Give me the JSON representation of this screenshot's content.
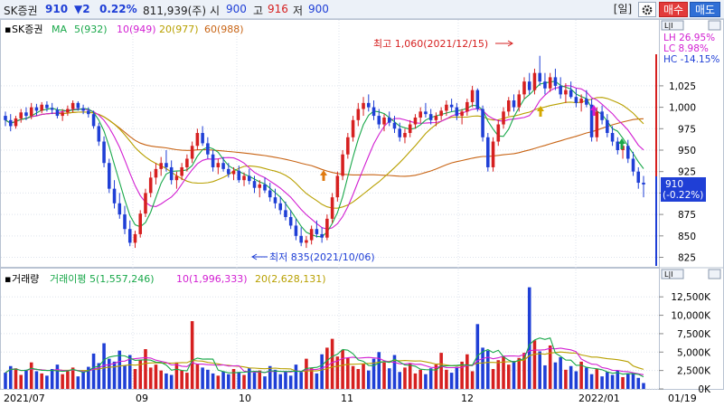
{
  "header": {
    "stock_name": "SK증권",
    "price": "910",
    "change": "▼2",
    "change_pct": "0.22%",
    "volume": "811,939(주)",
    "open_label": "시",
    "open": "900",
    "high_label": "고",
    "high": "916",
    "low_label": "저",
    "low": "900",
    "period_button": "[일]",
    "gear_icon": "gear-icon",
    "buy_button": "매수",
    "sell_button": "매도",
    "colors": {
      "up": "#d62020",
      "down": "#1f3fd6",
      "buy": "#e23b3b",
      "sell": "#2f6fd6"
    }
  },
  "price_panel": {
    "title": "SK증권",
    "ma_label": "MA",
    "ma_legend": [
      {
        "text": "5(932)",
        "color": "#19a84a"
      },
      {
        "text": "10(949)",
        "color": "#d21fd2"
      },
      {
        "text": "20(977)",
        "color": "#b8a000"
      },
      {
        "text": "60(988)",
        "color": "#c86414"
      }
    ],
    "stats": {
      "lh": "LH  26.95%",
      "lc": "LC  8.98%",
      "hc": "HC -14.15%"
    },
    "high_annotation": "최고 1,060(2021/12/15)",
    "low_annotation": "최저 835(2021/10/06)",
    "current_price_box": {
      "price": "910",
      "change": "(-0.22%)"
    },
    "panel_button": "L|I"
  },
  "volume_panel": {
    "title": "거래량",
    "legend": [
      {
        "text": "거래이평 5(1,557,246)",
        "color": "#19a84a"
      },
      {
        "text": "10(1,996,333)",
        "color": "#d21fd2"
      },
      {
        "text": "20(2,628,131)",
        "color": "#b8a000"
      }
    ],
    "panel_button": "L|I"
  },
  "x_axis": {
    "labels": [
      "2021/07",
      "09",
      "10",
      "11",
      "12",
      "2022/01",
      "01/19"
    ]
  },
  "chart_data": [
    {
      "type": "candlestick",
      "title": "SK증권",
      "ylim": [
        815,
        1085
      ],
      "yticks": [
        825,
        850,
        875,
        900,
        925,
        950,
        975,
        1000,
        1025
      ],
      "ytick_labels": [
        "825",
        "850",
        "875",
        "900",
        "925",
        "950",
        "975",
        "1,000",
        "1,025"
      ],
      "high_point": {
        "value": 1060,
        "date": "2021/12/15"
      },
      "low_point": {
        "value": 835,
        "date": "2021/10/06"
      },
      "last_close": 910,
      "candles_ohlc": [
        [
          990,
          995,
          978,
          985
        ],
        [
          985,
          992,
          972,
          978
        ],
        [
          978,
          990,
          975,
          987
        ],
        [
          987,
          998,
          982,
          994
        ],
        [
          994,
          1000,
          985,
          990
        ],
        [
          990,
          1005,
          986,
          1000
        ],
        [
          1000,
          1004,
          990,
          996
        ],
        [
          996,
          1006,
          993,
          1003
        ],
        [
          1003,
          1007,
          995,
          999
        ],
        [
          999,
          1005,
          992,
          997
        ],
        [
          997,
          1000,
          987,
          990
        ],
        [
          990,
          998,
          984,
          994
        ],
        [
          994,
          1002,
          990,
          998
        ],
        [
          998,
          1008,
          994,
          1005
        ],
        [
          1005,
          1007,
          996,
          999
        ],
        [
          999,
          1003,
          992,
          996
        ],
        [
          996,
          1000,
          988,
          992
        ],
        [
          992,
          996,
          975,
          978
        ],
        [
          978,
          982,
          955,
          960
        ],
        [
          960,
          966,
          930,
          935
        ],
        [
          935,
          940,
          900,
          905
        ],
        [
          905,
          915,
          882,
          888
        ],
        [
          888,
          900,
          870,
          875
        ],
        [
          875,
          885,
          852,
          858
        ],
        [
          858,
          868,
          838,
          842
        ],
        [
          842,
          856,
          836,
          852
        ],
        [
          852,
          880,
          848,
          876
        ],
        [
          876,
          905,
          872,
          900
        ],
        [
          900,
          925,
          895,
          918
        ],
        [
          918,
          935,
          910,
          928
        ],
        [
          928,
          942,
          920,
          935
        ],
        [
          935,
          950,
          925,
          930
        ],
        [
          930,
          938,
          910,
          915
        ],
        [
          915,
          925,
          905,
          920
        ],
        [
          920,
          935,
          915,
          930
        ],
        [
          930,
          945,
          925,
          940
        ],
        [
          940,
          960,
          935,
          955
        ],
        [
          955,
          975,
          950,
          970
        ],
        [
          970,
          978,
          955,
          958
        ],
        [
          958,
          965,
          940,
          945
        ],
        [
          945,
          950,
          925,
          930
        ],
        [
          930,
          940,
          922,
          935
        ],
        [
          935,
          942,
          925,
          928
        ],
        [
          928,
          935,
          918,
          922
        ],
        [
          922,
          930,
          915,
          926
        ],
        [
          926,
          932,
          912,
          915
        ],
        [
          915,
          924,
          908,
          920
        ],
        [
          920,
          928,
          910,
          914
        ],
        [
          914,
          920,
          900,
          906
        ],
        [
          906,
          915,
          895,
          910
        ],
        [
          910,
          918,
          900,
          903
        ],
        [
          903,
          912,
          890,
          895
        ],
        [
          895,
          905,
          882,
          888
        ],
        [
          888,
          896,
          875,
          880
        ],
        [
          880,
          890,
          868,
          872
        ],
        [
          872,
          880,
          858,
          862
        ],
        [
          862,
          870,
          845,
          850
        ],
        [
          850,
          860,
          838,
          842
        ],
        [
          842,
          850,
          836,
          845
        ],
        [
          845,
          862,
          840,
          858
        ],
        [
          858,
          868,
          848,
          852
        ],
        [
          852,
          860,
          842,
          848
        ],
        [
          848,
          875,
          845,
          870
        ],
        [
          870,
          900,
          865,
          895
        ],
        [
          895,
          925,
          890,
          920
        ],
        [
          920,
          950,
          915,
          945
        ],
        [
          945,
          970,
          940,
          965
        ],
        [
          965,
          990,
          960,
          985
        ],
        [
          985,
          1005,
          978,
          998
        ],
        [
          998,
          1012,
          990,
          1005
        ],
        [
          1005,
          1015,
          995,
          1000
        ],
        [
          1000,
          1008,
          985,
          990
        ],
        [
          990,
          998,
          975,
          980
        ],
        [
          980,
          992,
          972,
          988
        ],
        [
          988,
          995,
          978,
          982
        ],
        [
          982,
          990,
          970,
          975
        ],
        [
          975,
          982,
          960,
          965
        ],
        [
          965,
          975,
          958,
          970
        ],
        [
          970,
          985,
          965,
          980
        ],
        [
          980,
          992,
          975,
          988
        ],
        [
          988,
          1000,
          982,
          995
        ],
        [
          995,
          1005,
          988,
          992
        ],
        [
          992,
          998,
          980,
          985
        ],
        [
          985,
          994,
          978,
          990
        ],
        [
          990,
          1000,
          985,
          996
        ],
        [
          996,
          1008,
          990,
          1003
        ],
        [
          1003,
          1010,
          995,
          1000
        ],
        [
          1000,
          1005,
          985,
          990
        ],
        [
          990,
          998,
          980,
          995
        ],
        [
          995,
          1010,
          990,
          1006
        ],
        [
          1006,
          1025,
          1000,
          1020
        ],
        [
          1020,
          1022,
          995,
          998
        ],
        [
          998,
          1002,
          960,
          965
        ],
        [
          965,
          970,
          925,
          930
        ],
        [
          930,
          965,
          925,
          960
        ],
        [
          960,
          985,
          955,
          980
        ],
        [
          980,
          1000,
          975,
          995
        ],
        [
          995,
          1012,
          990,
          1008
        ],
        [
          1008,
          1015,
          995,
          1000
        ],
        [
          1000,
          1020,
          995,
          1015
        ],
        [
          1015,
          1035,
          1010,
          1030
        ],
        [
          1030,
          1040,
          1015,
          1020
        ],
        [
          1020,
          1045,
          1015,
          1040
        ],
        [
          1040,
          1060,
          1025,
          1030
        ],
        [
          1030,
          1040,
          1015,
          1022
        ],
        [
          1022,
          1040,
          1018,
          1035
        ],
        [
          1035,
          1045,
          1020,
          1025
        ],
        [
          1025,
          1035,
          1010,
          1015
        ],
        [
          1015,
          1028,
          1005,
          1020
        ],
        [
          1020,
          1030,
          1010,
          1012
        ],
        [
          1012,
          1022,
          1000,
          1005
        ],
        [
          1005,
          1015,
          995,
          1010
        ],
        [
          1010,
          1020,
          1000,
          1003
        ],
        [
          1003,
          1010,
          960,
          965
        ],
        [
          965,
          1000,
          960,
          995
        ],
        [
          995,
          1002,
          980,
          985
        ],
        [
          985,
          992,
          965,
          970
        ],
        [
          970,
          978,
          955,
          960
        ],
        [
          960,
          965,
          945,
          950
        ],
        [
          950,
          960,
          940,
          955
        ],
        [
          955,
          962,
          935,
          940
        ],
        [
          940,
          948,
          920,
          925
        ],
        [
          925,
          930,
          905,
          912
        ],
        [
          912,
          920,
          895,
          910
        ]
      ],
      "ma_series": [
        {
          "name": "MA 5",
          "color": "#19a84a",
          "end_value": 932
        },
        {
          "name": "MA 10",
          "color": "#d21fd2",
          "end_value": 949
        },
        {
          "name": "MA 20",
          "color": "#b8a000",
          "end_value": 977
        },
        {
          "name": "MA 60",
          "color": "#c86414",
          "end_value": 988
        }
      ]
    },
    {
      "type": "bar",
      "title": "거래량",
      "ylim": [
        0,
        14000
      ],
      "yticks": [
        0,
        2500,
        5000,
        7500,
        10000,
        12500
      ],
      "ytick_labels": [
        "0K",
        "2,500K",
        "5,000K",
        "7,500K",
        "10,000K",
        "12,500K"
      ],
      "volumes_k": [
        2200,
        3100,
        2800,
        1900,
        2600,
        3600,
        2400,
        2100,
        1800,
        2700,
        3300,
        2000,
        2400,
        2900,
        1700,
        2300,
        3000,
        4800,
        3500,
        6200,
        4100,
        3700,
        5200,
        3200,
        4600,
        2700,
        3900,
        5400,
        2900,
        3300,
        2500,
        2100,
        1900,
        3600,
        2500,
        2200,
        9200,
        3400,
        2900,
        2600,
        2100,
        1800,
        2400,
        2000,
        2700,
        2300,
        1900,
        2800,
        2200,
        2500,
        1700,
        3100,
        2600,
        2000,
        2400,
        1800,
        3300,
        2300,
        4100,
        2800,
        2100,
        4700,
        5600,
        6800,
        4400,
        5300,
        4200,
        3100,
        2700,
        3400,
        2500,
        4100,
        5000,
        3600,
        2800,
        4600,
        2300,
        2900,
        3500,
        2100,
        2600,
        2000,
        2800,
        3300,
        4900,
        2600,
        2200,
        3000,
        3700,
        4700,
        2400,
        8800,
        5600,
        5200,
        2700,
        3900,
        4400,
        3300,
        3800,
        4200,
        4900,
        13800,
        6600,
        5100,
        3200,
        5900,
        3600,
        4300,
        2600,
        3100,
        2400,
        3700,
        2900,
        2000,
        2700,
        1700,
        2300,
        1900,
        2500,
        1600,
        2100,
        2200,
        1500,
        800
      ],
      "ma_series": [
        {
          "name": "거래이평 5",
          "color": "#19a84a",
          "end_value": 1557246
        },
        {
          "name": "거래이평 10",
          "color": "#d21fd2",
          "end_value": 1996333
        },
        {
          "name": "거래이평 20",
          "color": "#b8a000",
          "end_value": 2628131
        }
      ]
    }
  ]
}
